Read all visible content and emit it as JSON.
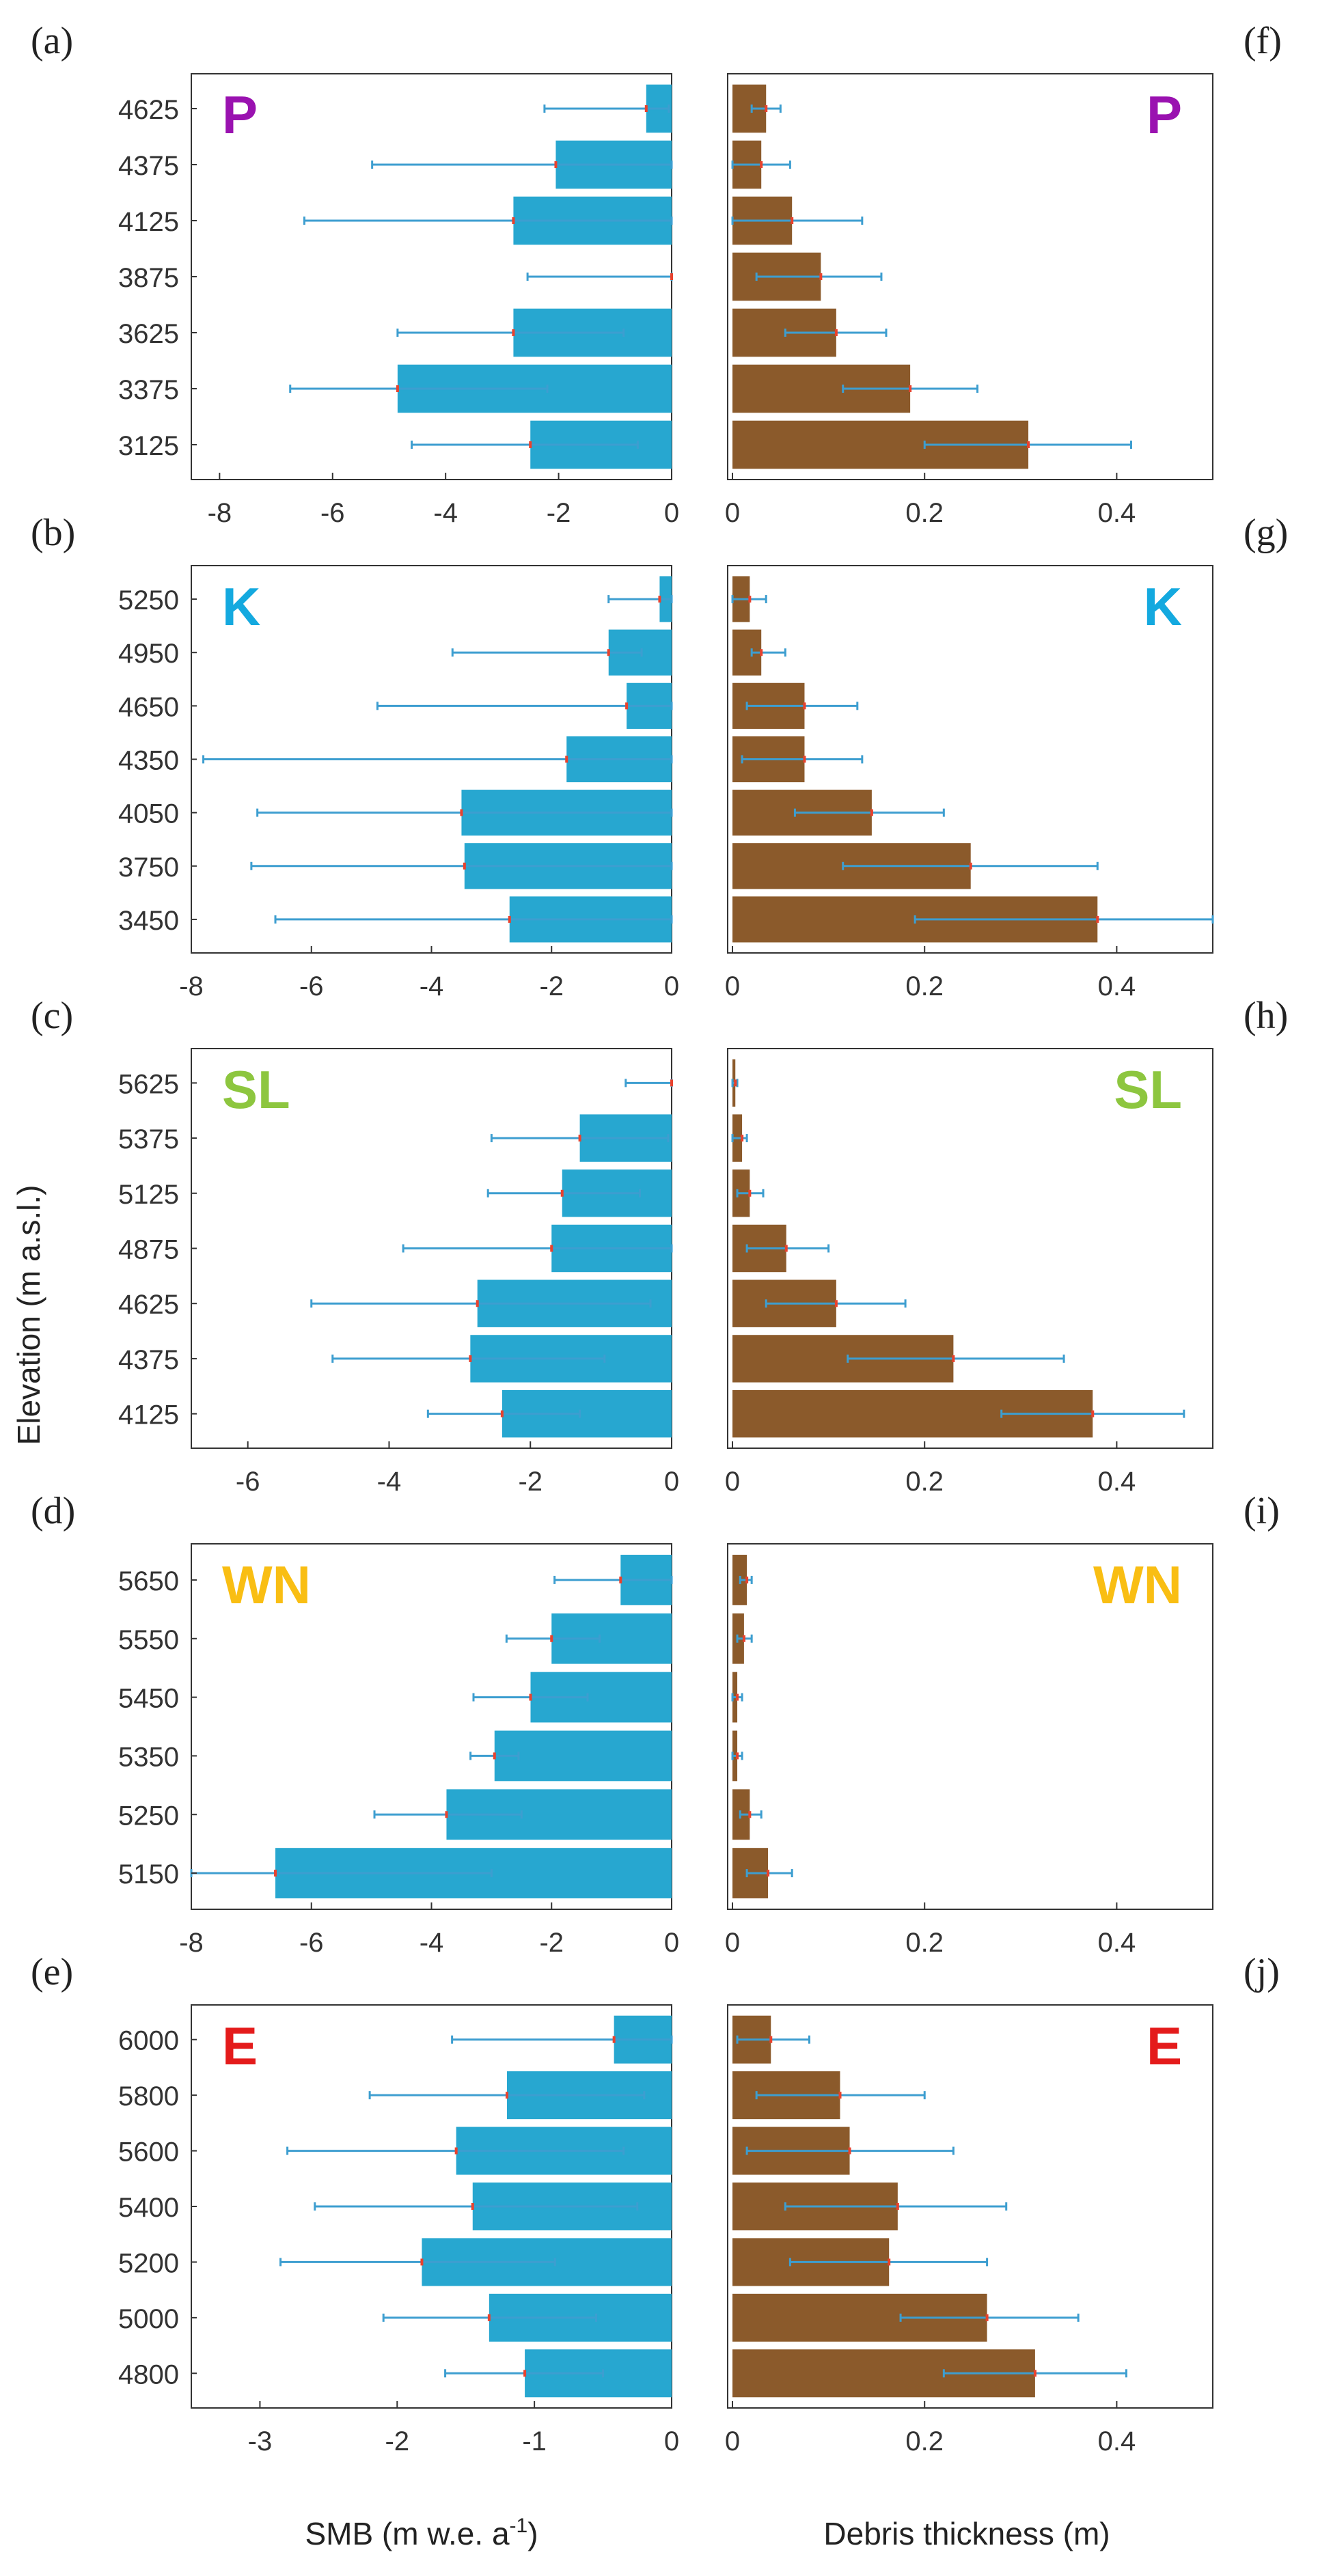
{
  "figure": {
    "y_axis_label": "Elevation (m a.s.l.)",
    "smb_axis_label": "SMB (m w.e. a",
    "smb_axis_label_sup": "-1",
    "smb_axis_label_end": ")",
    "debris_axis_label": "Debris thickness (m)"
  },
  "colors": {
    "smb_bar": "#27a7d0",
    "debris_bar": "#8b5a2b",
    "error_bar": "#3d9ed0",
    "mean_marker": "#e8422e"
  },
  "chart_data": [
    {
      "type": "bar",
      "orientation": "horizontal",
      "panel": "(a)",
      "glacier": "P",
      "glacier_color": "#9a12b0",
      "variable": "SMB",
      "categories": [
        "4625",
        "4375",
        "4125",
        "3875",
        "3625",
        "3375",
        "3125"
      ],
      "values": [
        -0.45,
        -2.05,
        -2.8,
        0,
        -2.8,
        -4.85,
        -2.5
      ],
      "error_low": [
        -2.25,
        -5.3,
        -6.5,
        -2.55,
        -4.85,
        -6.75,
        -4.6
      ],
      "error_high": [
        -0.05,
        0,
        0,
        0,
        -0.85,
        -2.2,
        -0.6
      ],
      "xlim": [
        -8.5,
        0
      ],
      "xticks": [
        "-8",
        "-6",
        "-4",
        "-2",
        "0"
      ],
      "xtick_values": [
        -8,
        -6,
        -4,
        -2,
        0
      ]
    },
    {
      "type": "bar",
      "orientation": "horizontal",
      "panel": "(b)",
      "glacier": "K",
      "glacier_color": "#14a9df",
      "variable": "SMB",
      "categories": [
        "5250",
        "4950",
        "4650",
        "4350",
        "4050",
        "3750",
        "3450"
      ],
      "values": [
        -0.2,
        -1.05,
        -0.75,
        -1.75,
        -3.5,
        -3.45,
        -2.7
      ],
      "error_low": [
        -1.05,
        -3.65,
        -4.9,
        -7.8,
        -6.9,
        -7.0,
        -6.6
      ],
      "error_high": [
        0,
        -0.5,
        0,
        0,
        0,
        0,
        0
      ],
      "xlim": [
        -8,
        0
      ],
      "xticks": [
        "-8",
        "-6",
        "-4",
        "-2",
        "0"
      ],
      "xtick_values": [
        -8,
        -6,
        -4,
        -2,
        0
      ]
    },
    {
      "type": "bar",
      "orientation": "horizontal",
      "panel": "(c)",
      "glacier": "SL",
      "glacier_color": "#8dc63f",
      "variable": "SMB",
      "categories": [
        "5625",
        "5375",
        "5125",
        "4875",
        "4625",
        "4375",
        "4125"
      ],
      "values": [
        0,
        -1.3,
        -1.55,
        -1.7,
        -2.75,
        -2.85,
        -2.4
      ],
      "error_low": [
        -0.65,
        -2.55,
        -2.6,
        -3.8,
        -5.1,
        -4.8,
        -3.45
      ],
      "error_high": [
        0,
        -0.05,
        -0.45,
        0,
        -0.3,
        -0.95,
        -1.3
      ],
      "xlim": [
        -6.8,
        0
      ],
      "xticks": [
        "-6",
        "-4",
        "-2",
        "0"
      ],
      "xtick_values": [
        -6,
        -4,
        -2,
        0
      ]
    },
    {
      "type": "bar",
      "orientation": "horizontal",
      "panel": "(d)",
      "glacier": "WN",
      "glacier_color": "#f9be13",
      "variable": "SMB",
      "categories": [
        "5650",
        "5550",
        "5450",
        "5350",
        "5250",
        "5150"
      ],
      "values": [
        -0.85,
        -2.0,
        -2.35,
        -2.95,
        -3.75,
        -6.6
      ],
      "error_low": [
        -1.95,
        -2.75,
        -3.3,
        -3.35,
        -4.95,
        -8.0
      ],
      "error_high": [
        0,
        -1.2,
        -1.4,
        -2.55,
        -2.5,
        -3.0
      ],
      "xlim": [
        -8,
        0
      ],
      "xticks": [
        "-8",
        "-6",
        "-4",
        "-2",
        "0"
      ],
      "xtick_values": [
        -8,
        -6,
        -4,
        -2,
        0
      ]
    },
    {
      "type": "bar",
      "orientation": "horizontal",
      "panel": "(e)",
      "glacier": "E",
      "glacier_color": "#e41b1b",
      "variable": "SMB",
      "categories": [
        "6000",
        "5800",
        "5600",
        "5400",
        "5200",
        "5000",
        "4800"
      ],
      "values": [
        -0.42,
        -1.2,
        -1.57,
        -1.45,
        -1.82,
        -1.33,
        -1.07
      ],
      "error_low": [
        -1.6,
        -2.2,
        -2.8,
        -2.6,
        -2.85,
        -2.1,
        -1.65
      ],
      "error_high": [
        0,
        -0.2,
        -0.35,
        -0.25,
        -0.85,
        -0.55,
        -0.5
      ],
      "xlim": [
        -3.5,
        0
      ],
      "xticks": [
        "-3",
        "-2",
        "-1",
        "0"
      ],
      "xtick_values": [
        -3,
        -2,
        -1,
        0
      ]
    },
    {
      "type": "bar",
      "orientation": "horizontal",
      "panel": "(f)",
      "glacier": "P",
      "glacier_color": "#9a12b0",
      "variable": "Debris thickness",
      "categories": [
        "4625",
        "4375",
        "4125",
        "3875",
        "3625",
        "3375",
        "3125"
      ],
      "values": [
        0.035,
        0.03,
        0.062,
        0.092,
        0.108,
        0.185,
        0.308
      ],
      "error_low": [
        0.02,
        0.0,
        0.0,
        0.025,
        0.055,
        0.115,
        0.2
      ],
      "error_high": [
        0.05,
        0.06,
        0.135,
        0.155,
        0.16,
        0.255,
        0.415
      ],
      "xlim": [
        -0.005,
        0.5
      ],
      "xticks": [
        "0",
        "0.2",
        "0.4"
      ],
      "xtick_values": [
        0,
        0.2,
        0.4
      ]
    },
    {
      "type": "bar",
      "orientation": "horizontal",
      "panel": "(g)",
      "glacier": "K",
      "glacier_color": "#14a9df",
      "variable": "Debris thickness",
      "categories": [
        "5250",
        "4950",
        "4650",
        "4350",
        "4050",
        "3750",
        "3450"
      ],
      "values": [
        0.018,
        0.03,
        0.075,
        0.075,
        0.145,
        0.248,
        0.38
      ],
      "error_low": [
        0.0,
        0.02,
        0.015,
        0.01,
        0.065,
        0.115,
        0.19
      ],
      "error_high": [
        0.035,
        0.055,
        0.13,
        0.135,
        0.22,
        0.38,
        0.5
      ],
      "xlim": [
        -0.005,
        0.5
      ],
      "xticks": [
        "0",
        "0.2",
        "0.4"
      ],
      "xtick_values": [
        0,
        0.2,
        0.4
      ]
    },
    {
      "type": "bar",
      "orientation": "horizontal",
      "panel": "(h)",
      "glacier": "SL",
      "glacier_color": "#8dc63f",
      "variable": "Debris thickness",
      "categories": [
        "5625",
        "5375",
        "5125",
        "4875",
        "4625",
        "4375",
        "4125"
      ],
      "values": [
        0.003,
        0.01,
        0.018,
        0.056,
        0.108,
        0.23,
        0.375
      ],
      "error_low": [
        0.0,
        0.0,
        0.005,
        0.015,
        0.035,
        0.12,
        0.28
      ],
      "error_high": [
        0.005,
        0.015,
        0.032,
        0.1,
        0.18,
        0.345,
        0.47
      ],
      "xlim": [
        -0.005,
        0.5
      ],
      "xticks": [
        "0",
        "0.2",
        "0.4"
      ],
      "xtick_values": [
        0,
        0.2,
        0.4
      ]
    },
    {
      "type": "bar",
      "orientation": "horizontal",
      "panel": "(i)",
      "glacier": "WN",
      "glacier_color": "#f9be13",
      "variable": "Debris thickness",
      "categories": [
        "5650",
        "5550",
        "5450",
        "5350",
        "5250",
        "5150"
      ],
      "values": [
        0.015,
        0.012,
        0.005,
        0.005,
        0.018,
        0.037
      ],
      "error_low": [
        0.008,
        0.005,
        0.0,
        0.0,
        0.008,
        0.015
      ],
      "error_high": [
        0.02,
        0.02,
        0.01,
        0.01,
        0.03,
        0.062
      ],
      "xlim": [
        -0.005,
        0.5
      ],
      "xticks": [
        "0",
        "0.2",
        "0.4"
      ],
      "xtick_values": [
        0,
        0.2,
        0.4
      ]
    },
    {
      "type": "bar",
      "orientation": "horizontal",
      "panel": "(j)",
      "glacier": "E",
      "glacier_color": "#e41b1b",
      "variable": "Debris thickness",
      "categories": [
        "6000",
        "5800",
        "5600",
        "5400",
        "5200",
        "5000",
        "4800"
      ],
      "values": [
        0.04,
        0.112,
        0.122,
        0.172,
        0.163,
        0.265,
        0.315
      ],
      "error_low": [
        0.005,
        0.025,
        0.015,
        0.055,
        0.06,
        0.175,
        0.22
      ],
      "error_high": [
        0.08,
        0.2,
        0.23,
        0.285,
        0.265,
        0.36,
        0.41
      ],
      "xlim": [
        -0.005,
        0.5
      ],
      "xticks": [
        "0",
        "0.2",
        "0.4"
      ],
      "xtick_values": [
        0,
        0.2,
        0.4
      ]
    }
  ]
}
